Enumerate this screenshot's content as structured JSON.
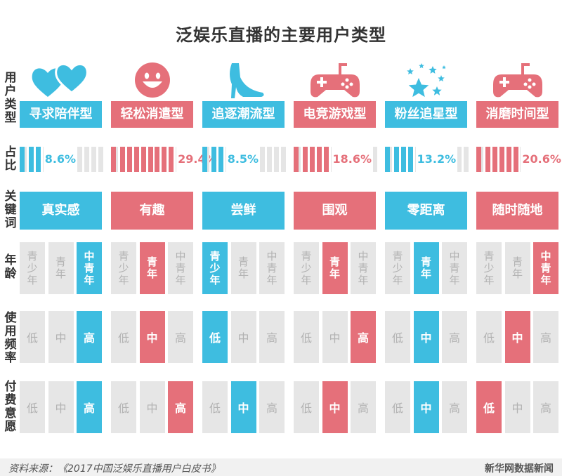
{
  "title": "泛娱乐直播的主要用户类型",
  "row_labels": {
    "user_type": "用户类型",
    "share": "占比",
    "keyword": "关键词",
    "age": "年龄",
    "frequency": "使用频率",
    "pay": "付费意愿"
  },
  "age_levels": [
    "青少年",
    "青年",
    "中青年"
  ],
  "level_labels": [
    "低",
    "中",
    "高"
  ],
  "colors": {
    "blue": "#3ebde0",
    "red": "#e5707a",
    "gray": "#e6e6e6",
    "gray_text": "#b2b2b2"
  },
  "chart_data": {
    "type": "table",
    "title": "泛娱乐直播的主要用户类型",
    "columns": [
      {
        "name": "寻求陪伴型",
        "icon": "hearts-icon",
        "color": "blue",
        "share": 8.6,
        "share_label": "8.6%",
        "keyword": "真实感",
        "age": 2,
        "frequency": 2,
        "pay": 2
      },
      {
        "name": "轻松消遣型",
        "icon": "smiley-icon",
        "color": "red",
        "share": 29.4,
        "share_label": "29.4%",
        "keyword": "有趣",
        "age": 1,
        "frequency": 1,
        "pay": 2
      },
      {
        "name": "追逐潮流型",
        "icon": "high-heel-icon",
        "color": "blue",
        "share": 8.5,
        "share_label": "8.5%",
        "keyword": "尝鲜",
        "age": 0,
        "frequency": 0,
        "pay": 1
      },
      {
        "name": "电竞游戏型",
        "icon": "gamepad-icon",
        "color": "red",
        "share": 18.6,
        "share_label": "18.6%",
        "keyword": "围观",
        "age": 1,
        "frequency": 2,
        "pay": 1
      },
      {
        "name": "粉丝追星型",
        "icon": "stars-icon",
        "color": "blue",
        "share": 13.2,
        "share_label": "13.2%",
        "keyword": "零距离",
        "age": 1,
        "frequency": 1,
        "pay": 1
      },
      {
        "name": "消磨时间型",
        "icon": "gamepad-icon",
        "color": "red",
        "share": 20.6,
        "share_label": "20.6%",
        "keyword": "随时随地",
        "age": 2,
        "frequency": 1,
        "pay": 0
      }
    ]
  },
  "footer": {
    "source": "资料来源：《2017中国泛娱乐直播用户白皮书》",
    "brand": "新华网数据新闻"
  }
}
